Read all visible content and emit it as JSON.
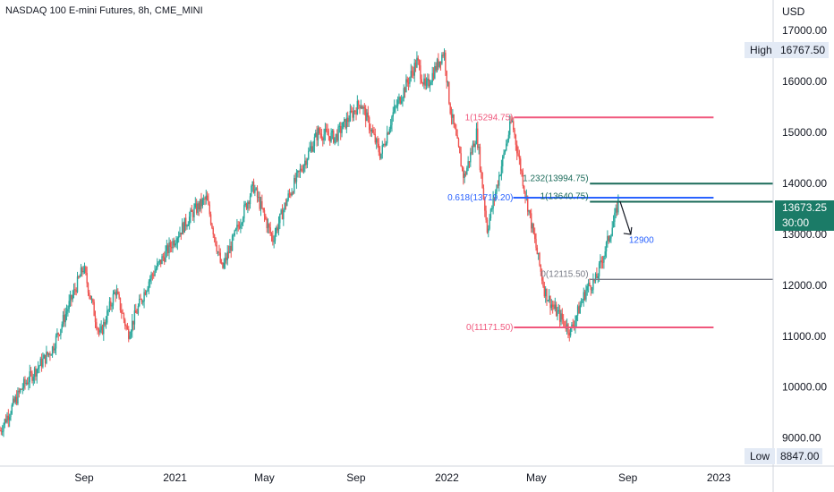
{
  "title": "NASDAQ 100 E-mini Futures, 8h, CME_MINI",
  "currency": "USD",
  "high": {
    "label": "High",
    "value": "16767.50"
  },
  "low": {
    "label": "Low",
    "value": "8847.00"
  },
  "last": {
    "price": "13673.25",
    "countdown": "30:00"
  },
  "colors": {
    "up": "#26a69a",
    "down": "#ef5350",
    "fib_red": "#f0587d",
    "fib_blue": "#2962ff",
    "fib_green": "#1b6b5a",
    "fib_gray": "#787b86",
    "last_bg": "#1b7b67",
    "arrow": "#131722"
  },
  "chart_data": {
    "type": "candlestick",
    "y_axis": {
      "ticks": [
        "17000.00",
        "16000.00",
        "15000.00",
        "14000.00",
        "13000.00",
        "12000.00",
        "11000.00",
        "10000.00",
        "9000.00"
      ],
      "tick_values": [
        17000,
        16000,
        15000,
        14000,
        13000,
        12000,
        11000,
        10000,
        9000
      ],
      "ylim": [
        8450,
        17600
      ],
      "scale": "linear",
      "position": "right"
    },
    "x_axis": {
      "labels": [
        "Sep",
        "2021",
        "May",
        "Sep",
        "2022",
        "May",
        "Sep",
        "2023"
      ],
      "dates": [
        "2020-09-01",
        "2021-01-01",
        "2021-05-01",
        "2021-09-01",
        "2022-01-01",
        "2022-05-01",
        "2022-09-01",
        "2023-01-01"
      ],
      "range": [
        "2020-05-11",
        "2023-03-15"
      ]
    },
    "price_path": {
      "dates": [
        "2020-05-11",
        "2020-06-10",
        "2020-07-20",
        "2020-08-31",
        "2020-09-22",
        "2020-10-13",
        "2020-10-30",
        "2020-11-27",
        "2020-12-31",
        "2021-01-26",
        "2021-02-12",
        "2021-03-05",
        "2021-04-16",
        "2021-05-12",
        "2021-06-01",
        "2021-07-12",
        "2021-08-04",
        "2021-09-07",
        "2021-10-04",
        "2021-10-20",
        "2021-11-22",
        "2021-12-03",
        "2021-12-28",
        "2022-01-05",
        "2022-01-24",
        "2022-02-10",
        "2022-02-24",
        "2022-03-29",
        "2022-04-15",
        "2022-05-12",
        "2022-05-24",
        "2022-06-16",
        "2022-07-08",
        "2022-07-20",
        "2022-08-16",
        "2022-08-19"
      ],
      "closes": [
        9150,
        10000,
        10750,
        12350,
        11000,
        11900,
        11050,
        12100,
        12900,
        13450,
        13700,
        12300,
        13950,
        12900,
        13700,
        15000,
        14900,
        15600,
        14550,
        15350,
        16400,
        15850,
        16600,
        15500,
        14100,
        15000,
        13100,
        15250,
        13900,
        11900,
        11550,
        11100,
        11950,
        12100,
        13400,
        13673
      ]
    },
    "annotations": [
      {
        "type": "fib_level",
        "label": "1(15294.75)",
        "price": 15294.75,
        "color": "#f0587d"
      },
      {
        "type": "fib_level",
        "label": "0(11171.50)",
        "price": 11171.5,
        "color": "#f0587d"
      },
      {
        "type": "fib_level",
        "label": "0.618(13719.20)",
        "price": 13719.2,
        "color": "#2962ff"
      },
      {
        "type": "fib_level",
        "label": "1.232(13994.75)",
        "price": 13994.75,
        "color": "#1b6b5a"
      },
      {
        "type": "fib_level",
        "label": "1(13640.75)",
        "price": 13640.75,
        "color": "#1b6b5a"
      },
      {
        "type": "fib_level",
        "label": "0(12115.50)",
        "price": 12115.5,
        "color": "#787b86"
      },
      {
        "type": "target",
        "label": "12900",
        "price": 12900,
        "color": "#2962ff"
      }
    ]
  }
}
